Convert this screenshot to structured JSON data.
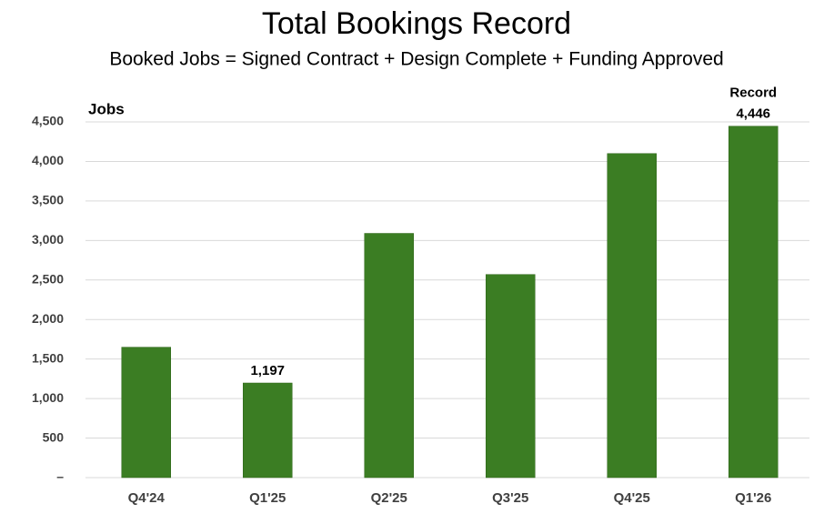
{
  "chart_data": {
    "type": "bar",
    "title": "Total Bookings Record",
    "subtitle": "Booked Jobs = Signed Contract + Design Complete + Funding Approved",
    "y_label": "Jobs",
    "annotation": "Record",
    "categories": [
      "Q4'24",
      "Q1'25",
      "Q2'25",
      "Q3'25",
      "Q4'25",
      "Q1'26"
    ],
    "values": [
      1650,
      1197,
      3090,
      2570,
      4100,
      4446
    ],
    "value_labels": [
      null,
      "1,197",
      null,
      null,
      null,
      "4,446"
    ],
    "color": "#3b7d23",
    "ylim": [
      0,
      4500
    ],
    "yticks": [
      {
        "value": 0,
        "label": "–"
      },
      500,
      {
        "value": 1000,
        "label": "1,000"
      },
      {
        "value": 1500,
        "label": "1,500"
      },
      {
        "value": 2000,
        "label": "2,000"
      },
      {
        "value": 2500,
        "label": "2,500"
      },
      {
        "value": 3000,
        "label": "3,000"
      },
      {
        "value": 3500,
        "label": "3,500"
      },
      {
        "value": 4000,
        "label": "4,000"
      },
      {
        "value": 4500,
        "label": "4,500"
      }
    ],
    "grid": true
  }
}
